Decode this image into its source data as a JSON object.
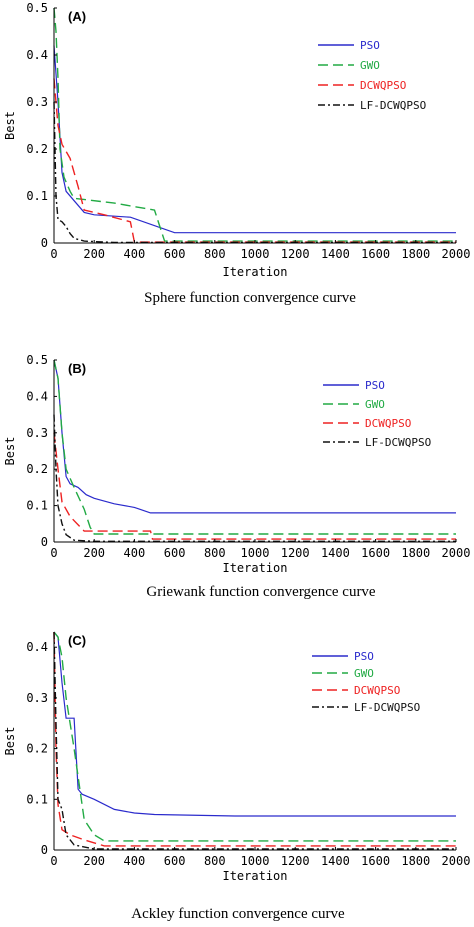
{
  "chart_data": [
    {
      "type": "line",
      "panel_label": "(A)",
      "caption": "Sphere function convergence curve",
      "xlabel": "Iteration",
      "ylabel": "Best",
      "xlim": [
        0,
        2000
      ],
      "ylim": [
        0,
        0.5
      ],
      "xticks": [
        "0",
        "200",
        "400",
        "600",
        "800",
        "1000",
        "1200",
        "1400",
        "1600",
        "1800",
        "2000"
      ],
      "yticks": [
        "0",
        "0.1",
        "0.2",
        "0.3",
        "0.4",
        "0.5"
      ],
      "legend_position": "top-right",
      "series": [
        {
          "name": "PSO",
          "color": "#2b2bcc",
          "style": "solid",
          "x": [
            0,
            20,
            40,
            60,
            100,
            150,
            200,
            380,
            600,
            2000
          ],
          "y": [
            0.42,
            0.3,
            0.15,
            0.11,
            0.09,
            0.065,
            0.06,
            0.055,
            0.022,
            0.022
          ]
        },
        {
          "name": "GWO",
          "color": "#22aa44",
          "style": "dash",
          "x": [
            0,
            10,
            20,
            30,
            50,
            80,
            100,
            300,
            500,
            550,
            2000
          ],
          "y": [
            0.5,
            0.45,
            0.35,
            0.2,
            0.14,
            0.11,
            0.095,
            0.085,
            0.07,
            0.004,
            0.004
          ]
        },
        {
          "name": "DCWQPSO",
          "color": "#ee2222",
          "style": "dash",
          "x": [
            0,
            20,
            40,
            80,
            120,
            150,
            250,
            380,
            400,
            2000
          ],
          "y": [
            0.35,
            0.25,
            0.21,
            0.18,
            0.12,
            0.07,
            0.06,
            0.045,
            0.002,
            0.002
          ]
        },
        {
          "name": "LF-DCWQPSO",
          "color": "#111111",
          "style": "dashdot",
          "x": [
            0,
            10,
            20,
            40,
            60,
            80,
            100,
            150,
            300,
            2000
          ],
          "y": [
            0.3,
            0.1,
            0.05,
            0.045,
            0.035,
            0.02,
            0.01,
            0.004,
            0.001,
            0.001
          ]
        }
      ]
    },
    {
      "type": "line",
      "panel_label": "(B)",
      "caption": "Griewank function convergence curve",
      "xlabel": "Iteration",
      "ylabel": "Best",
      "xlim": [
        0,
        2000
      ],
      "ylim": [
        0,
        0.5
      ],
      "xticks": [
        "0",
        "200",
        "400",
        "600",
        "800",
        "1000",
        "1200",
        "1400",
        "1600",
        "1800",
        "2000"
      ],
      "yticks": [
        "0",
        "0.1",
        "0.2",
        "0.3",
        "0.4",
        "0.5"
      ],
      "legend_position": "top-right",
      "series": [
        {
          "name": "PSO",
          "color": "#2b2bcc",
          "style": "solid",
          "x": [
            0,
            20,
            40,
            60,
            80,
            120,
            160,
            200,
            300,
            400,
            480,
            2000
          ],
          "y": [
            0.5,
            0.45,
            0.3,
            0.18,
            0.16,
            0.15,
            0.13,
            0.12,
            0.105,
            0.095,
            0.08,
            0.08
          ]
        },
        {
          "name": "GWO",
          "color": "#22aa44",
          "style": "dash",
          "x": [
            0,
            20,
            40,
            60,
            100,
            150,
            180,
            200,
            2000
          ],
          "y": [
            0.5,
            0.45,
            0.3,
            0.2,
            0.15,
            0.09,
            0.04,
            0.022,
            0.022
          ]
        },
        {
          "name": "DCWQPSO",
          "color": "#ee2222",
          "style": "dash",
          "x": [
            0,
            20,
            40,
            80,
            150,
            480,
            490,
            2000
          ],
          "y": [
            0.3,
            0.2,
            0.11,
            0.07,
            0.03,
            0.03,
            0.008,
            0.008
          ]
        },
        {
          "name": "LF-DCWQPSO",
          "color": "#111111",
          "style": "dashdot",
          "x": [
            0,
            10,
            20,
            40,
            60,
            100,
            200,
            2000
          ],
          "y": [
            0.35,
            0.2,
            0.1,
            0.05,
            0.02,
            0.005,
            0.002,
            0.002
          ]
        }
      ]
    },
    {
      "type": "line",
      "panel_label": "(C)",
      "caption": "Ackley function convergence curve",
      "xlabel": "Iteration",
      "ylabel": "Best",
      "xlim": [
        0,
        2000
      ],
      "ylim": [
        0,
        0.43
      ],
      "xticks": [
        "0",
        "200",
        "400",
        "600",
        "800",
        "1000",
        "1200",
        "1400",
        "1600",
        "1800",
        "2000"
      ],
      "yticks": [
        "0",
        "0.1",
        "0.2",
        "0.3",
        "0.4"
      ],
      "legend_position": "top-right",
      "series": [
        {
          "name": "PSO",
          "color": "#2b2bcc",
          "style": "solid",
          "x": [
            0,
            20,
            40,
            60,
            100,
            120,
            140,
            200,
            300,
            400,
            500,
            900,
            2000
          ],
          "y": [
            0.43,
            0.42,
            0.33,
            0.26,
            0.26,
            0.12,
            0.11,
            0.1,
            0.08,
            0.073,
            0.07,
            0.067,
            0.067
          ]
        },
        {
          "name": "GWO",
          "color": "#22aa44",
          "style": "dash",
          "x": [
            0,
            20,
            40,
            60,
            100,
            150,
            200,
            250,
            2000
          ],
          "y": [
            0.43,
            0.42,
            0.38,
            0.3,
            0.2,
            0.06,
            0.03,
            0.018,
            0.018
          ]
        },
        {
          "name": "DCWQPSO",
          "color": "#ee2222",
          "style": "dash",
          "x": [
            0,
            10,
            20,
            40,
            80,
            150,
            250,
            2000
          ],
          "y": [
            0.43,
            0.2,
            0.09,
            0.04,
            0.03,
            0.02,
            0.008,
            0.008
          ]
        },
        {
          "name": "LF-DCWQPSO",
          "color": "#111111",
          "style": "dashdot",
          "x": [
            0,
            10,
            20,
            40,
            60,
            100,
            200,
            2000
          ],
          "y": [
            0.43,
            0.25,
            0.1,
            0.08,
            0.03,
            0.01,
            0.002,
            0.002
          ]
        }
      ]
    }
  ]
}
